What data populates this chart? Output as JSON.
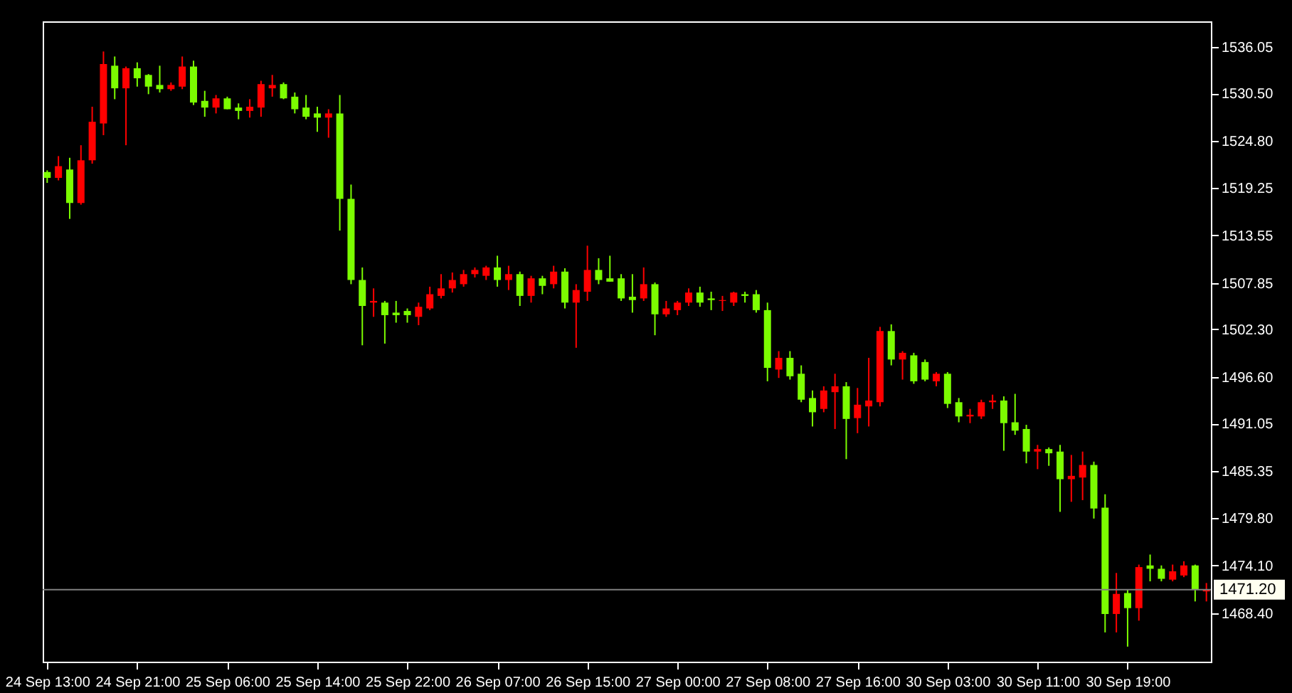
{
  "chart_data": {
    "type": "candlestick",
    "categories": [
      "24 Sep 13:00",
      null,
      null,
      null,
      null,
      null,
      null,
      null,
      "24 Sep 21:00",
      null,
      null,
      null,
      null,
      null,
      null,
      null,
      "25 Sep 06:00",
      null,
      null,
      null,
      null,
      null,
      null,
      null,
      "25 Sep 14:00",
      null,
      null,
      null,
      null,
      null,
      null,
      null,
      "25 Sep 22:00",
      null,
      null,
      null,
      null,
      null,
      null,
      null,
      "26 Sep 07:00",
      null,
      null,
      null,
      null,
      null,
      null,
      null,
      "26 Sep 15:00",
      null,
      null,
      null,
      null,
      null,
      null,
      null,
      "27 Sep 00:00",
      null,
      null,
      null,
      null,
      null,
      null,
      null,
      "27 Sep 08:00",
      null,
      null,
      null,
      null,
      null,
      null,
      null,
      "27 Sep 16:00",
      null,
      null,
      null,
      null,
      null,
      null,
      null,
      "30 Sep 03:00",
      null,
      null,
      null,
      null,
      null,
      null,
      null,
      "30 Sep 11:00",
      null,
      null,
      null,
      null,
      null,
      null,
      null,
      "30 Sep 19:00",
      null,
      null,
      null,
      null,
      null,
      null,
      null
    ],
    "ohlc": [
      [
        1521.1,
        1521.3,
        1519.8,
        1520.4
      ],
      [
        1520.4,
        1523.0,
        1520.1,
        1521.8
      ],
      [
        1521.4,
        1522.8,
        1515.5,
        1517.4
      ],
      [
        1517.4,
        1524.3,
        1517.2,
        1522.5
      ],
      [
        1522.5,
        1528.9,
        1522.1,
        1527.1
      ],
      [
        1526.9,
        1535.5,
        1525.5,
        1534.0
      ],
      [
        1533.8,
        1534.9,
        1529.8,
        1531.1
      ],
      [
        1531.1,
        1533.7,
        1524.3,
        1533.5
      ],
      [
        1533.5,
        1534.2,
        1531.3,
        1532.3
      ],
      [
        1532.7,
        1532.8,
        1530.4,
        1531.3
      ],
      [
        1531.5,
        1533.8,
        1530.6,
        1531.0
      ],
      [
        1531.0,
        1531.8,
        1530.8,
        1531.5
      ],
      [
        1531.3,
        1534.9,
        1531.0,
        1533.7
      ],
      [
        1533.7,
        1534.4,
        1529.1,
        1529.4
      ],
      [
        1529.6,
        1530.8,
        1527.7,
        1528.8
      ],
      [
        1528.8,
        1530.3,
        1528.1,
        1529.9
      ],
      [
        1529.9,
        1530.1,
        1528.6,
        1528.6
      ],
      [
        1528.8,
        1529.3,
        1527.4,
        1528.4
      ],
      [
        1528.4,
        1529.8,
        1527.6,
        1528.9
      ],
      [
        1528.8,
        1532.0,
        1527.7,
        1531.6
      ],
      [
        1531.1,
        1532.7,
        1530.1,
        1531.5
      ],
      [
        1531.6,
        1531.8,
        1529.8,
        1529.9
      ],
      [
        1530.1,
        1530.6,
        1528.1,
        1528.6
      ],
      [
        1528.8,
        1530.3,
        1527.4,
        1527.7
      ],
      [
        1528.1,
        1528.9,
        1525.9,
        1527.6
      ],
      [
        1527.6,
        1528.6,
        1525.2,
        1528.1
      ],
      [
        1528.1,
        1530.3,
        1514.1,
        1517.9
      ],
      [
        1517.9,
        1519.6,
        1507.7,
        1508.2
      ],
      [
        1508.2,
        1509.7,
        1500.4,
        1505.1
      ],
      [
        1505.5,
        1507.2,
        1503.8,
        1505.7
      ],
      [
        1505.5,
        1505.7,
        1500.6,
        1504.0
      ],
      [
        1504.3,
        1505.7,
        1503.1,
        1504.0
      ],
      [
        1504.5,
        1504.8,
        1503.1,
        1504.0
      ],
      [
        1503.8,
        1505.5,
        1502.8,
        1505.0
      ],
      [
        1504.8,
        1507.4,
        1504.6,
        1506.5
      ],
      [
        1506.3,
        1508.9,
        1506.0,
        1507.2
      ],
      [
        1507.2,
        1509.1,
        1506.7,
        1508.2
      ],
      [
        1507.7,
        1509.4,
        1507.4,
        1508.9
      ],
      [
        1508.9,
        1509.7,
        1508.5,
        1509.4
      ],
      [
        1508.7,
        1509.9,
        1508.2,
        1509.7
      ],
      [
        1509.7,
        1511.1,
        1507.4,
        1508.2
      ],
      [
        1508.2,
        1509.9,
        1507.0,
        1508.9
      ],
      [
        1508.9,
        1509.2,
        1505.1,
        1506.3
      ],
      [
        1506.3,
        1508.7,
        1505.5,
        1508.4
      ],
      [
        1508.4,
        1508.7,
        1506.5,
        1507.5
      ],
      [
        1507.7,
        1509.9,
        1507.2,
        1509.2
      ],
      [
        1509.2,
        1509.6,
        1504.8,
        1505.5
      ],
      [
        1505.5,
        1507.7,
        1500.1,
        1507.0
      ],
      [
        1506.8,
        1512.3,
        1505.7,
        1509.4
      ],
      [
        1509.4,
        1510.8,
        1507.7,
        1508.2
      ],
      [
        1508.4,
        1511.1,
        1508.0,
        1508.0
      ],
      [
        1508.4,
        1508.9,
        1505.7,
        1506.0
      ],
      [
        1506.2,
        1508.9,
        1504.3,
        1505.8
      ],
      [
        1506.0,
        1509.7,
        1505.7,
        1507.7
      ],
      [
        1507.7,
        1507.9,
        1501.6,
        1504.1
      ],
      [
        1504.1,
        1505.7,
        1503.8,
        1504.8
      ],
      [
        1504.6,
        1505.7,
        1504.0,
        1505.5
      ],
      [
        1505.5,
        1507.2,
        1505.1,
        1506.7
      ],
      [
        1506.7,
        1507.4,
        1505.0,
        1505.5
      ],
      [
        1506.0,
        1506.8,
        1504.6,
        1505.8
      ],
      [
        1505.7,
        1506.3,
        1504.5,
        1505.8
      ],
      [
        1505.5,
        1506.8,
        1505.1,
        1506.7
      ],
      [
        1506.5,
        1506.8,
        1505.5,
        1506.3
      ],
      [
        1506.5,
        1507.0,
        1504.3,
        1504.6
      ],
      [
        1504.6,
        1505.5,
        1496.1,
        1497.7
      ],
      [
        1497.5,
        1499.7,
        1496.5,
        1498.9
      ],
      [
        1498.9,
        1499.7,
        1496.3,
        1496.7
      ],
      [
        1497.0,
        1498.0,
        1493.6,
        1493.9
      ],
      [
        1494.1,
        1495.0,
        1490.7,
        1492.4
      ],
      [
        1492.8,
        1495.5,
        1492.4,
        1495.0
      ],
      [
        1494.8,
        1497.0,
        1490.4,
        1495.5
      ],
      [
        1495.5,
        1496.0,
        1486.8,
        1491.6
      ],
      [
        1491.7,
        1495.3,
        1489.9,
        1493.3
      ],
      [
        1493.1,
        1498.9,
        1490.7,
        1493.8
      ],
      [
        1493.6,
        1502.6,
        1493.1,
        1502.1
      ],
      [
        1502.1,
        1502.9,
        1498.0,
        1498.7
      ],
      [
        1498.7,
        1499.7,
        1496.3,
        1499.5
      ],
      [
        1499.2,
        1499.5,
        1495.8,
        1496.1
      ],
      [
        1498.4,
        1498.7,
        1496.1,
        1496.3
      ],
      [
        1496.1,
        1497.2,
        1495.5,
        1497.0
      ],
      [
        1497.0,
        1497.2,
        1492.9,
        1493.4
      ],
      [
        1493.6,
        1494.1,
        1491.2,
        1491.9
      ],
      [
        1491.9,
        1492.8,
        1491.1,
        1492.1
      ],
      [
        1491.9,
        1493.9,
        1491.6,
        1493.6
      ],
      [
        1493.6,
        1494.5,
        1492.8,
        1493.8
      ],
      [
        1493.8,
        1494.3,
        1487.8,
        1491.1
      ],
      [
        1491.2,
        1494.6,
        1489.7,
        1490.2
      ],
      [
        1490.4,
        1490.9,
        1486.3,
        1487.7
      ],
      [
        1487.7,
        1488.5,
        1485.6,
        1488.0
      ],
      [
        1488.0,
        1488.2,
        1486.0,
        1487.5
      ],
      [
        1487.7,
        1488.5,
        1480.5,
        1484.4
      ],
      [
        1484.4,
        1487.3,
        1481.7,
        1484.8
      ],
      [
        1484.6,
        1487.7,
        1481.9,
        1486.1
      ],
      [
        1486.1,
        1486.5,
        1479.7,
        1480.9
      ],
      [
        1481.0,
        1482.6,
        1466.1,
        1468.3
      ],
      [
        1468.3,
        1473.2,
        1466.1,
        1470.7
      ],
      [
        1470.8,
        1471.2,
        1464.4,
        1469.0
      ],
      [
        1469.0,
        1474.2,
        1467.5,
        1473.9
      ],
      [
        1474.1,
        1475.4,
        1472.2,
        1473.7
      ],
      [
        1473.7,
        1474.1,
        1472.2,
        1472.5
      ],
      [
        1472.4,
        1474.2,
        1472.2,
        1473.4
      ],
      [
        1472.9,
        1474.6,
        1472.7,
        1474.1
      ],
      [
        1474.1,
        1474.2,
        1469.8,
        1471.2
      ],
      [
        1471.0,
        1472.0,
        1469.8,
        1471.2
      ]
    ],
    "colors": [
      "#7cfc00",
      "#ff0000",
      "#7cfc00",
      "#ff0000",
      "#ff0000",
      "#ff0000",
      "#7cfc00",
      "#ff0000",
      "#7cfc00",
      "#7cfc00",
      "#7cfc00",
      "#ff0000",
      "#ff0000",
      "#7cfc00",
      "#7cfc00",
      "#ff0000",
      "#7cfc00",
      "#7cfc00",
      "#ff0000",
      "#ff0000",
      "#ff0000",
      "#7cfc00",
      "#7cfc00",
      "#7cfc00",
      "#7cfc00",
      "#ff0000",
      "#7cfc00",
      "#7cfc00",
      "#7cfc00",
      "#ff0000",
      "#7cfc00",
      "#7cfc00",
      "#7cfc00",
      "#ff0000",
      "#ff0000",
      "#ff0000",
      "#ff0000",
      "#ff0000",
      "#ff0000",
      "#ff0000",
      "#7cfc00",
      "#ff0000",
      "#7cfc00",
      "#ff0000",
      "#7cfc00",
      "#ff0000",
      "#7cfc00",
      "#ff0000",
      "#ff0000",
      "#7cfc00",
      "#7cfc00",
      "#7cfc00",
      "#7cfc00",
      "#ff0000",
      "#7cfc00",
      "#ff0000",
      "#ff0000",
      "#ff0000",
      "#7cfc00",
      "#7cfc00",
      "#ff0000",
      "#ff0000",
      "#7cfc00",
      "#7cfc00",
      "#7cfc00",
      "#ff0000",
      "#7cfc00",
      "#7cfc00",
      "#7cfc00",
      "#ff0000",
      "#ff0000",
      "#7cfc00",
      "#ff0000",
      "#ff0000",
      "#ff0000",
      "#7cfc00",
      "#ff0000",
      "#7cfc00",
      "#7cfc00",
      "#ff0000",
      "#7cfc00",
      "#7cfc00",
      "#ff0000",
      "#ff0000",
      "#ff0000",
      "#7cfc00",
      "#7cfc00",
      "#7cfc00",
      "#ff0000",
      "#7cfc00",
      "#7cfc00",
      "#ff0000",
      "#ff0000",
      "#7cfc00",
      "#7cfc00",
      "#ff0000",
      "#7cfc00",
      "#ff0000",
      "#7cfc00",
      "#7cfc00",
      "#ff0000",
      "#ff0000",
      "#7cfc00",
      "#ff0000"
    ],
    "ylim": [
      1462.6,
      1539.1
    ],
    "yticks": [
      {
        "value": 1536.05,
        "label": "1536.05"
      },
      {
        "value": 1530.5,
        "label": "1530.50"
      },
      {
        "value": 1524.8,
        "label": "1524.80"
      },
      {
        "value": 1519.25,
        "label": "1519.25"
      },
      {
        "value": 1513.55,
        "label": "1513.55"
      },
      {
        "value": 1507.85,
        "label": "1507.85"
      },
      {
        "value": 1502.3,
        "label": "1502.30"
      },
      {
        "value": 1496.6,
        "label": "1496.60"
      },
      {
        "value": 1491.05,
        "label": "1491.05"
      },
      {
        "value": 1485.35,
        "label": "1485.35"
      },
      {
        "value": 1479.8,
        "label": "1479.80"
      },
      {
        "value": 1474.1,
        "label": "1474.10"
      },
      {
        "value": 1468.4,
        "label": "1468.40"
      }
    ],
    "ref_lines": [
      {
        "axis": "y",
        "value": 1471.2,
        "label": "1471.20",
        "color": "#808080"
      }
    ],
    "grid": false
  }
}
